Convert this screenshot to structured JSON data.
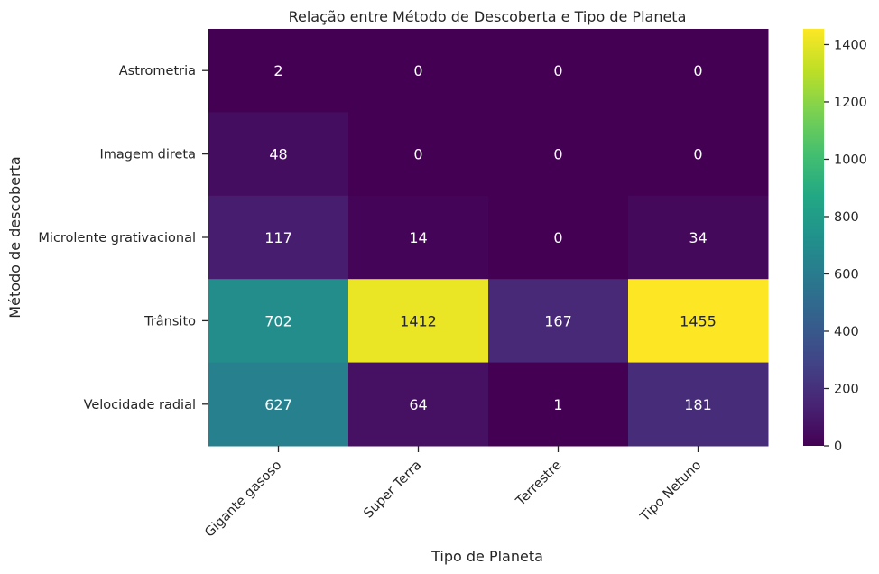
{
  "chart_data": {
    "type": "heatmap",
    "title": "Relação entre Método de Descoberta e Tipo de Planeta",
    "xlabel": "Tipo de Planeta",
    "ylabel": "Método de descoberta",
    "x_categories": [
      "Gigante gasoso",
      "Super Terra",
      "Terrestre",
      "Tipo Netuno"
    ],
    "y_categories": [
      "Astrometria",
      "Imagem direta",
      "Microlente grativacional",
      "Trânsito",
      "Velocidade radial"
    ],
    "values": [
      [
        2,
        0,
        0,
        0
      ],
      [
        48,
        0,
        0,
        0
      ],
      [
        117,
        14,
        0,
        34
      ],
      [
        702,
        1412,
        167,
        1455
      ],
      [
        627,
        64,
        1,
        181
      ]
    ],
    "colormap": "viridis",
    "vmin": 0,
    "vmax": 1455,
    "colorbar_ticks": [
      0,
      200,
      400,
      600,
      800,
      1000,
      1200,
      1400
    ],
    "annotations": true,
    "grid": false
  }
}
